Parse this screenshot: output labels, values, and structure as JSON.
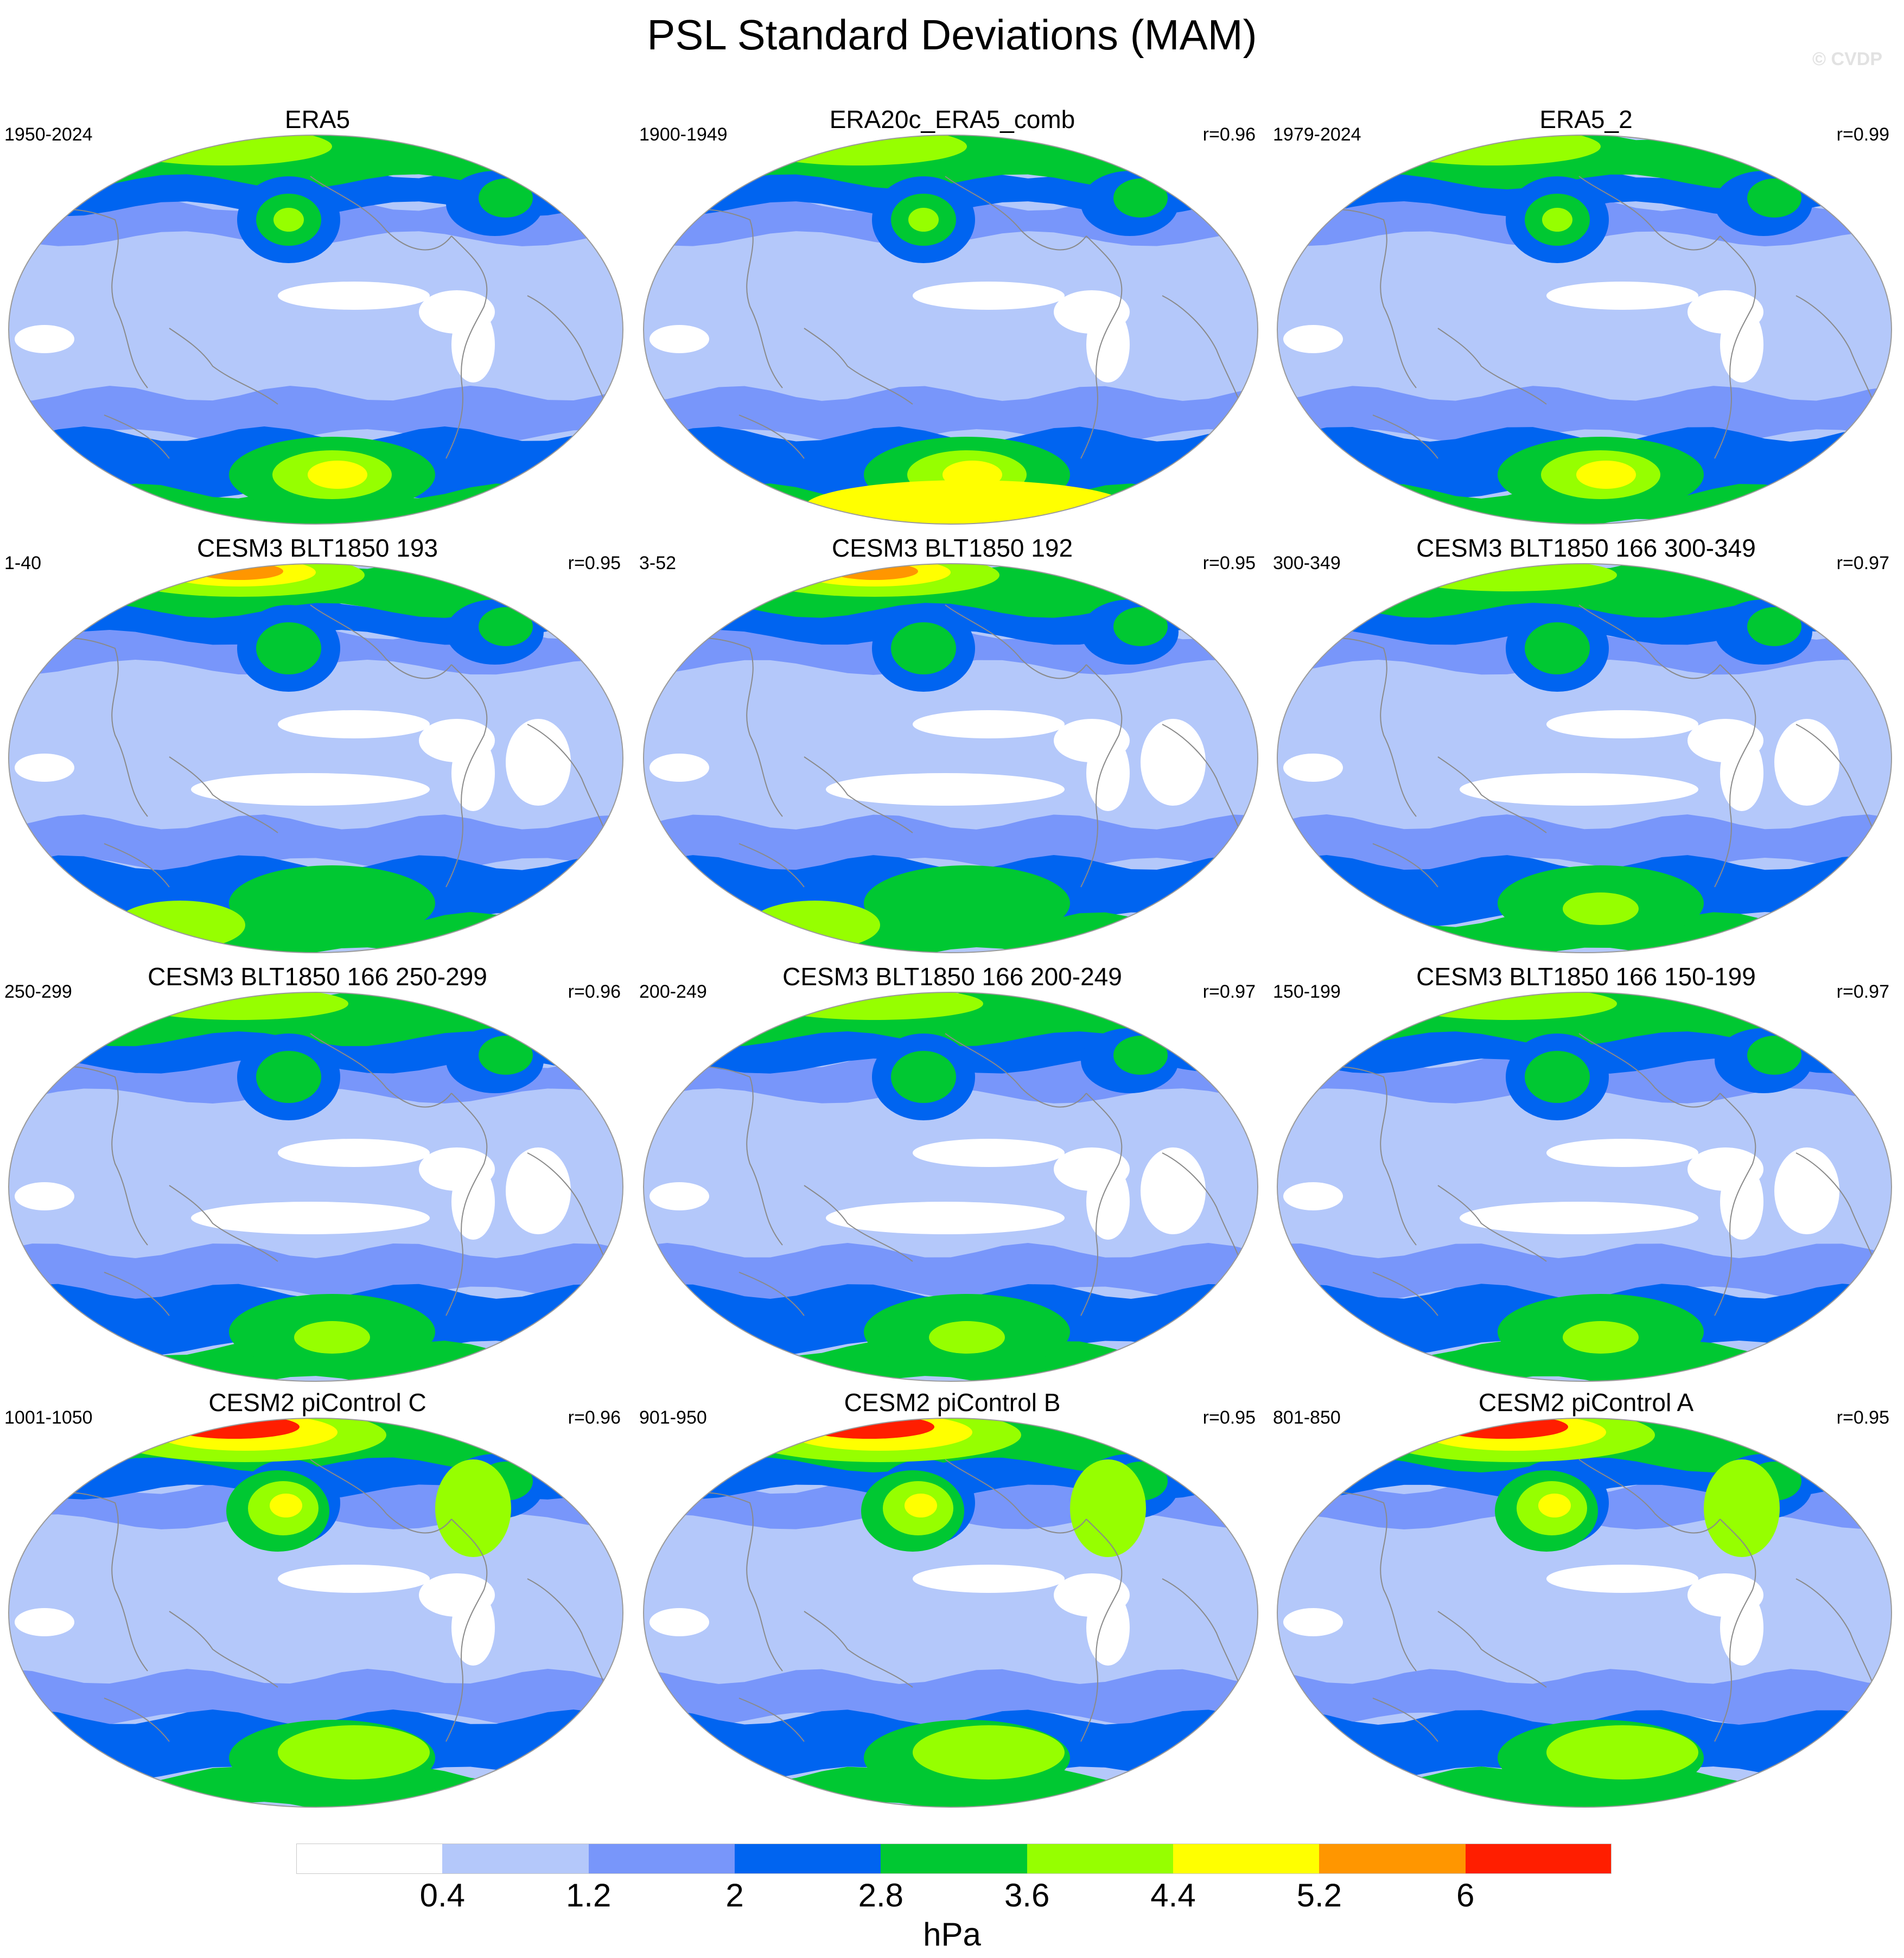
{
  "title": "PSL Standard Deviations (MAM)",
  "watermark": "© CVDP",
  "panels": [
    {
      "name": "ERA5",
      "period": "1950-2024",
      "r": "",
      "variant": "obs"
    },
    {
      "name": "ERA20c_ERA5_comb",
      "period": "1900-1949",
      "r": "r=0.96",
      "variant": "obs20c"
    },
    {
      "name": "ERA5_2",
      "period": "1979-2024",
      "r": "r=0.99",
      "variant": "obs"
    },
    {
      "name": "CESM3 BLT1850 193",
      "period": "1-40",
      "r": "r=0.95",
      "variant": "cesm3strong"
    },
    {
      "name": "CESM3 BLT1850 192",
      "period": "3-52",
      "r": "r=0.95",
      "variant": "cesm3strong"
    },
    {
      "name": "CESM3 BLT1850 166 300-349",
      "period": "300-349",
      "r": "r=0.97",
      "variant": "cesm3"
    },
    {
      "name": "CESM3 BLT1850 166 250-299",
      "period": "250-299",
      "r": "r=0.96",
      "variant": "cesm3"
    },
    {
      "name": "CESM3 BLT1850 166 200-249",
      "period": "200-249",
      "r": "r=0.97",
      "variant": "cesm3"
    },
    {
      "name": "CESM3 BLT1850 166 150-199",
      "period": "150-199",
      "r": "r=0.97",
      "variant": "cesm3"
    },
    {
      "name": "CESM2 piControl C",
      "period": "1001-1050",
      "r": "r=0.96",
      "variant": "cesm2"
    },
    {
      "name": "CESM2 piControl B",
      "period": "901-950",
      "r": "r=0.95",
      "variant": "cesm2"
    },
    {
      "name": "CESM2 piControl A",
      "period": "801-850",
      "r": "r=0.95",
      "variant": "cesm2"
    }
  ],
  "colorbar": {
    "colors": [
      "#ffffff",
      "#b4c8fa",
      "#7896fa",
      "#0064f0",
      "#00c832",
      "#96ff00",
      "#ffff00",
      "#ff9600",
      "#ff1e00"
    ],
    "labels": [
      "0.4",
      "1.2",
      "2",
      "2.8",
      "3.6",
      "4.4",
      "5.2",
      "6"
    ],
    "units": "hPa"
  }
}
